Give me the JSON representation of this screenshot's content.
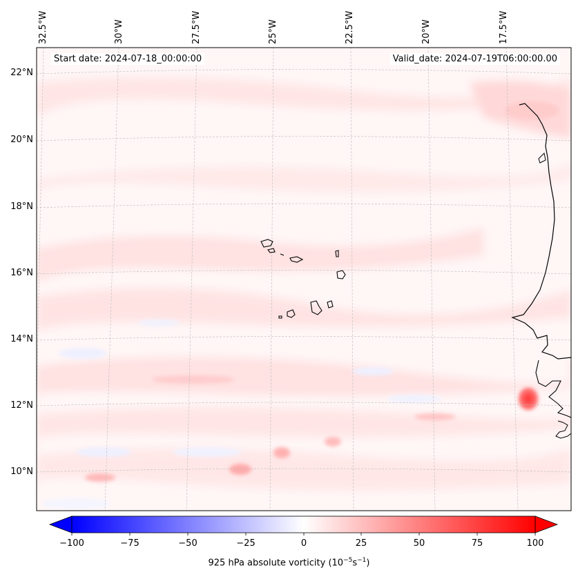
{
  "map": {
    "start_date": "Start date: 2024-07-18_00:00:00",
    "valid_date": "Valid_date: 2024-07-19T06:00:00.00",
    "lon_labels": [
      "32.5°W",
      "30°W",
      "27.5°W",
      "25°W",
      "22.5°W",
      "20°W",
      "17.5°W"
    ],
    "lat_labels": [
      "22°N",
      "20°N",
      "18°N",
      "16°N",
      "14°N",
      "12°N",
      "10°N"
    ]
  },
  "colorbar": {
    "ticks": [
      "−100",
      "−75",
      "−50",
      "−25",
      "0",
      "25",
      "50",
      "75",
      "100"
    ],
    "label_main": "925 hPa absolute vorticity (10",
    "label_exp1": "−5",
    "label_mid": "s",
    "label_exp2": "−1",
    "label_end": ")",
    "range": [
      -100,
      100
    ],
    "colormap": "bwr"
  }
}
